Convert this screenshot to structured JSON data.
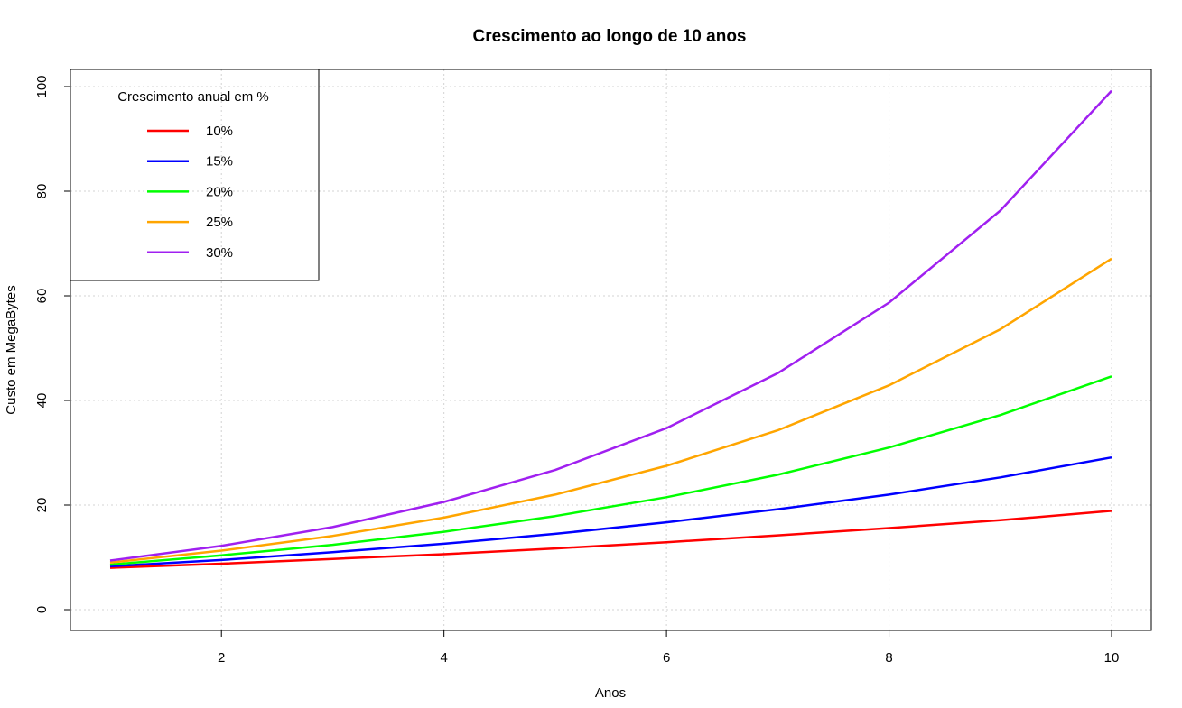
{
  "chart_data": {
    "type": "line",
    "title": "Crescimento ao longo de 10 anos",
    "xlabel": "Anos",
    "ylabel": "Custo em MegaBytes",
    "xlim": [
      1,
      10
    ],
    "ylim": [
      0,
      100
    ],
    "xticks": [
      2,
      4,
      6,
      8,
      10
    ],
    "yticks": [
      0,
      20,
      40,
      60,
      80,
      100
    ],
    "grid": true,
    "legend": {
      "title": "Crescimento anual em %",
      "position": "top-left"
    },
    "x": [
      1,
      2,
      3,
      4,
      5,
      6,
      7,
      8,
      9,
      10
    ],
    "series": [
      {
        "name": "10%",
        "color": "#FF0000",
        "values": [
          8.0,
          8.8,
          9.7,
          10.6,
          11.7,
          12.9,
          14.2,
          15.6,
          17.1,
          18.9
        ]
      },
      {
        "name": "15%",
        "color": "#0000FF",
        "values": [
          8.3,
          9.5,
          11.0,
          12.6,
          14.5,
          16.7,
          19.2,
          22.0,
          25.3,
          29.1
        ]
      },
      {
        "name": "20%",
        "color": "#00FF00",
        "values": [
          8.6,
          10.4,
          12.4,
          14.9,
          17.9,
          21.5,
          25.8,
          31.0,
          37.2,
          44.6
        ]
      },
      {
        "name": "25%",
        "color": "#FFA500",
        "values": [
          9.0,
          11.3,
          14.1,
          17.6,
          22.0,
          27.5,
          34.3,
          42.9,
          53.6,
          67.1
        ]
      },
      {
        "name": "30%",
        "color": "#A020F0",
        "values": [
          9.4,
          12.2,
          15.8,
          20.6,
          26.7,
          34.7,
          45.2,
          58.7,
          76.3,
          99.2
        ]
      }
    ]
  }
}
